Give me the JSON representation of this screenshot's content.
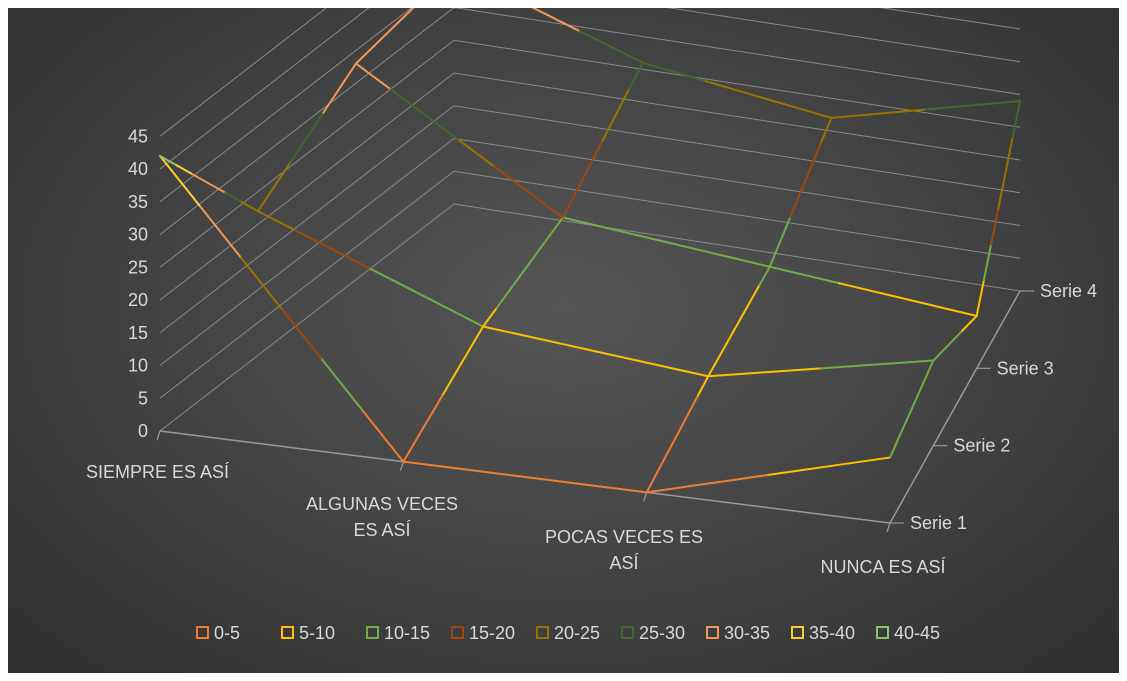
{
  "chart_data": {
    "type": "surface-3d-wireframe",
    "categories": [
      "SIEMPRE ES ASÍ",
      "ALGUNAS VECES ES ASÍ",
      "POCAS VECES ES ASÍ",
      "NUNCA ES ASÍ"
    ],
    "depth_series": [
      "Serie 1",
      "Serie 2",
      "Serie 3",
      "Serie 4"
    ],
    "values": [
      [
        42,
        0,
        0,
        10
      ],
      [
        22,
        9,
        6,
        13
      ],
      [
        33,
        14,
        11,
        8
      ],
      [
        36,
        26,
        22,
        29
      ]
    ],
    "ylim": [
      0,
      45
    ],
    "ytick_step": 5,
    "yticks": [
      "0",
      "5",
      "10",
      "15",
      "20",
      "25",
      "30",
      "35",
      "40",
      "45"
    ],
    "grid": true,
    "legend_position": "bottom",
    "bands": [
      {
        "label": "0-5",
        "color": "#ED7D31"
      },
      {
        "label": "5-10",
        "color": "#FFC000"
      },
      {
        "label": "10-15",
        "color": "#70AD47"
      },
      {
        "label": "15-20",
        "color": "#9E480E"
      },
      {
        "label": "20-25",
        "color": "#997300"
      },
      {
        "label": "25-30",
        "color": "#43682B"
      },
      {
        "label": "30-35",
        "color": "#F1975A"
      },
      {
        "label": "35-40",
        "color": "#FFCD33"
      },
      {
        "label": "40-45",
        "color": "#8CC168"
      }
    ]
  }
}
